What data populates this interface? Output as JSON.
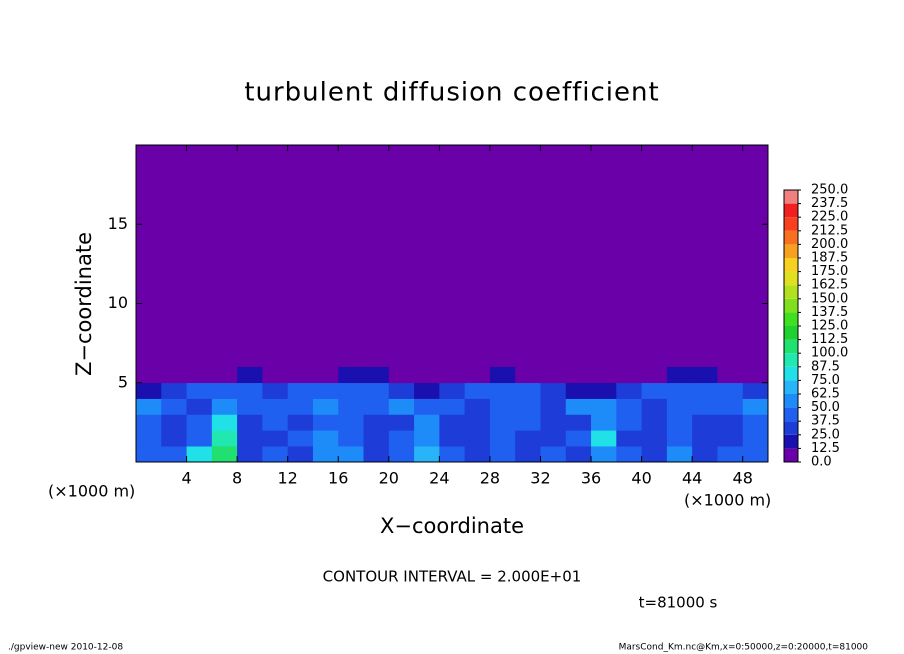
{
  "chart_data": {
    "type": "contour",
    "title": "turbulent diffusion coefficient",
    "x_label": "X−coordinate",
    "y_label": "Z−coordinate",
    "x_unit": "(×1000 m)",
    "y_unit": "(×1000 m)",
    "contour_interval": "CONTOUR INTERVAL = 2.000E+01",
    "time_label": "t=81000 s",
    "footer_left": "./gpview-new  2010-12-08",
    "footer_right": "MarsCond_Km.nc@Km,x=0:50000,z=0:20000,t=81000",
    "xlim": [
      0,
      50
    ],
    "ylim": [
      0,
      20
    ],
    "xticks": [
      4,
      8,
      12,
      16,
      20,
      24,
      28,
      32,
      36,
      40,
      44,
      48
    ],
    "yticks": [
      5,
      10,
      15
    ],
    "x": [
      1,
      3,
      5,
      7,
      9,
      11,
      13,
      15,
      17,
      19,
      21,
      23,
      25,
      27,
      29,
      31,
      33,
      35,
      37,
      39,
      41,
      43,
      45,
      47,
      49
    ],
    "z": [
      0.5,
      1.5,
      2.5,
      3.5,
      4.5,
      5.5
    ],
    "values": [
      [
        45,
        40,
        75,
        110,
        35,
        40,
        30,
        55,
        60,
        30,
        45,
        70,
        40,
        35,
        45,
        30,
        40,
        35,
        55,
        45,
        30,
        50,
        35,
        45,
        40
      ],
      [
        40,
        35,
        45,
        95,
        30,
        35,
        40,
        50,
        45,
        35,
        40,
        60,
        30,
        30,
        40,
        35,
        30,
        40,
        85,
        35,
        30,
        45,
        30,
        35,
        40
      ],
      [
        45,
        30,
        40,
        80,
        30,
        40,
        35,
        45,
        40,
        30,
        35,
        55,
        35,
        30,
        45,
        40,
        35,
        35,
        60,
        40,
        30,
        40,
        30,
        35,
        45
      ],
      [
        50,
        40,
        35,
        60,
        40,
        45,
        40,
        50,
        45,
        40,
        50,
        45,
        40,
        35,
        45,
        40,
        35,
        50,
        50,
        45,
        35,
        45,
        40,
        45,
        55
      ],
      [
        20,
        25,
        40,
        45,
        45,
        30,
        40,
        40,
        45,
        45,
        35,
        20,
        30,
        40,
        40,
        45,
        30,
        20,
        20,
        35,
        40,
        40,
        45,
        40,
        30
      ],
      [
        0,
        0,
        5,
        10,
        15,
        5,
        10,
        10,
        15,
        15,
        5,
        0,
        5,
        10,
        15,
        10,
        5,
        0,
        0,
        5,
        10,
        15,
        20,
        10,
        0
      ]
    ],
    "colorbar_ticks": [
      {
        "value": 0,
        "label": "0.0"
      },
      12.5,
      {
        "value": 25,
        "label": "25.0"
      },
      37.5,
      {
        "value": 50,
        "label": "50.0"
      },
      62.5,
      {
        "value": 75,
        "label": "75.0"
      },
      87.5,
      {
        "value": 100,
        "label": "100.0"
      },
      112.5,
      {
        "value": 125,
        "label": "125.0"
      },
      137.5,
      {
        "value": 150,
        "label": "150.0"
      },
      162.5,
      {
        "value": 175,
        "label": "175.0"
      },
      187.5,
      {
        "value": 200,
        "label": "200.0"
      },
      212.5,
      {
        "value": 225,
        "label": "225.0"
      },
      237.5,
      {
        "value": 250,
        "label": "250.0"
      }
    ],
    "colors": [
      "#6a00a8",
      "#1a10b0",
      "#1e3cd8",
      "#2060f0",
      "#1e8cf8",
      "#28b4f8",
      "#20e0e8",
      "#20e8b0",
      "#20e070",
      "#20d030",
      "#40e020",
      "#80e020",
      "#b0e020",
      "#e0e020",
      "#f8d020",
      "#f8a020",
      "#f87020",
      "#f84020",
      "#f02020",
      "#f08080"
    ]
  }
}
